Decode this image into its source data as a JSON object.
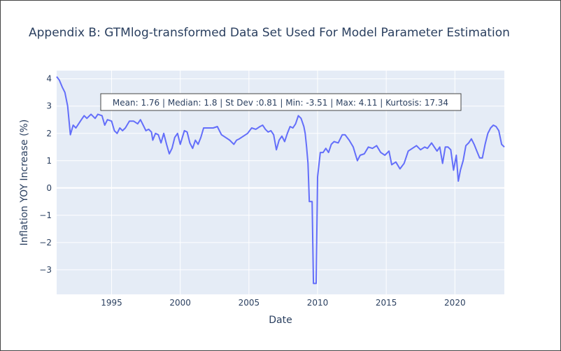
{
  "chart_data": {
    "type": "line",
    "title": "Appendix B: GTMlog-transformed Data Set Used For Model Parameter Estimation",
    "xlabel": "Date",
    "ylabel": "Inflation YOY Increase (%)",
    "annotation": "Mean: 1.76 | Median: 1.8 | St Dev :0.81 | Min: -3.51 | Max: 4.11 | Kurtosis: 17.34",
    "xlim": [
      1991.0,
      2023.6
    ],
    "ylim": [
      -3.9,
      4.3
    ],
    "x_ticks": [
      1995,
      2000,
      2005,
      2010,
      2015,
      2020
    ],
    "x_tick_labels": [
      "1995",
      "2000",
      "2005",
      "2010",
      "2015",
      "2020"
    ],
    "y_ticks": [
      -3,
      -2,
      -1,
      0,
      1,
      2,
      3,
      4
    ],
    "y_tick_labels": [
      "−3",
      "−2",
      "−1",
      "0",
      "1",
      "2",
      "3",
      "4"
    ],
    "grid": true,
    "colors": {
      "line": "#636efa",
      "plot_bg": "#e5ecf6",
      "grid": "#ffffff",
      "text": "#2a3f5f"
    },
    "series": [
      {
        "values": [
          [
            1991.0,
            4.08
          ],
          [
            1991.2,
            3.95
          ],
          [
            1991.4,
            3.7
          ],
          [
            1991.6,
            3.5
          ],
          [
            1991.8,
            3.0
          ],
          [
            1992.0,
            1.95
          ],
          [
            1992.2,
            2.3
          ],
          [
            1992.4,
            2.2
          ],
          [
            1992.6,
            2.35
          ],
          [
            1992.8,
            2.5
          ],
          [
            1993.0,
            2.65
          ],
          [
            1993.2,
            2.55
          ],
          [
            1993.5,
            2.7
          ],
          [
            1993.8,
            2.55
          ],
          [
            1994.0,
            2.7
          ],
          [
            1994.3,
            2.65
          ],
          [
            1994.5,
            2.3
          ],
          [
            1994.7,
            2.5
          ],
          [
            1995.0,
            2.45
          ],
          [
            1995.2,
            2.1
          ],
          [
            1995.4,
            2.0
          ],
          [
            1995.6,
            2.2
          ],
          [
            1995.8,
            2.1
          ],
          [
            1996.0,
            2.2
          ],
          [
            1996.3,
            2.45
          ],
          [
            1996.6,
            2.45
          ],
          [
            1996.9,
            2.35
          ],
          [
            1997.1,
            2.5
          ],
          [
            1997.3,
            2.3
          ],
          [
            1997.5,
            2.1
          ],
          [
            1997.7,
            2.15
          ],
          [
            1997.9,
            2.05
          ],
          [
            1998.0,
            1.75
          ],
          [
            1998.2,
            2.0
          ],
          [
            1998.4,
            1.95
          ],
          [
            1998.6,
            1.65
          ],
          [
            1998.8,
            2.0
          ],
          [
            1999.0,
            1.6
          ],
          [
            1999.2,
            1.25
          ],
          [
            1999.4,
            1.45
          ],
          [
            1999.6,
            1.85
          ],
          [
            1999.8,
            2.0
          ],
          [
            2000.0,
            1.6
          ],
          [
            2000.3,
            2.1
          ],
          [
            2000.5,
            2.05
          ],
          [
            2000.7,
            1.65
          ],
          [
            2000.9,
            1.45
          ],
          [
            2001.1,
            1.75
          ],
          [
            2001.3,
            1.6
          ],
          [
            2001.5,
            1.85
          ],
          [
            2001.7,
            2.2
          ],
          [
            2002.0,
            2.2
          ],
          [
            2002.4,
            2.2
          ],
          [
            2002.7,
            2.25
          ],
          [
            2003.0,
            1.95
          ],
          [
            2003.3,
            1.85
          ],
          [
            2003.6,
            1.75
          ],
          [
            2003.9,
            1.6
          ],
          [
            2004.1,
            1.75
          ],
          [
            2004.3,
            1.8
          ],
          [
            2004.6,
            1.9
          ],
          [
            2004.9,
            2.0
          ],
          [
            2005.2,
            2.2
          ],
          [
            2005.5,
            2.15
          ],
          [
            2005.8,
            2.25
          ],
          [
            2006.0,
            2.3
          ],
          [
            2006.2,
            2.15
          ],
          [
            2006.4,
            2.05
          ],
          [
            2006.6,
            2.1
          ],
          [
            2006.8,
            1.95
          ],
          [
            2007.0,
            1.4
          ],
          [
            2007.2,
            1.75
          ],
          [
            2007.4,
            1.9
          ],
          [
            2007.6,
            1.7
          ],
          [
            2007.8,
            2.0
          ],
          [
            2008.0,
            2.25
          ],
          [
            2008.2,
            2.2
          ],
          [
            2008.4,
            2.35
          ],
          [
            2008.6,
            2.65
          ],
          [
            2008.8,
            2.55
          ],
          [
            2009.0,
            2.25
          ],
          [
            2009.1,
            2.0
          ],
          [
            2009.2,
            1.5
          ],
          [
            2009.3,
            0.9
          ],
          [
            2009.4,
            -0.5
          ],
          [
            2009.6,
            -0.5
          ],
          [
            2009.7,
            -3.5
          ],
          [
            2009.9,
            -3.5
          ],
          [
            2010.0,
            0.4
          ],
          [
            2010.2,
            1.3
          ],
          [
            2010.4,
            1.3
          ],
          [
            2010.6,
            1.45
          ],
          [
            2010.8,
            1.3
          ],
          [
            2011.0,
            1.6
          ],
          [
            2011.2,
            1.7
          ],
          [
            2011.5,
            1.65
          ],
          [
            2011.8,
            1.95
          ],
          [
            2012.0,
            1.95
          ],
          [
            2012.3,
            1.75
          ],
          [
            2012.6,
            1.5
          ],
          [
            2012.9,
            1.0
          ],
          [
            2013.1,
            1.2
          ],
          [
            2013.4,
            1.25
          ],
          [
            2013.7,
            1.5
          ],
          [
            2014.0,
            1.45
          ],
          [
            2014.3,
            1.55
          ],
          [
            2014.6,
            1.3
          ],
          [
            2014.9,
            1.2
          ],
          [
            2015.2,
            1.35
          ],
          [
            2015.4,
            0.85
          ],
          [
            2015.7,
            0.95
          ],
          [
            2016.0,
            0.7
          ],
          [
            2016.3,
            0.9
          ],
          [
            2016.6,
            1.35
          ],
          [
            2016.9,
            1.45
          ],
          [
            2017.2,
            1.55
          ],
          [
            2017.5,
            1.4
          ],
          [
            2017.8,
            1.5
          ],
          [
            2018.0,
            1.45
          ],
          [
            2018.3,
            1.65
          ],
          [
            2018.5,
            1.5
          ],
          [
            2018.7,
            1.35
          ],
          [
            2018.9,
            1.5
          ],
          [
            2019.1,
            0.9
          ],
          [
            2019.3,
            1.5
          ],
          [
            2019.5,
            1.5
          ],
          [
            2019.7,
            1.4
          ],
          [
            2019.9,
            0.65
          ],
          [
            2020.1,
            1.2
          ],
          [
            2020.25,
            0.25
          ],
          [
            2020.4,
            0.65
          ],
          [
            2020.6,
            1.0
          ],
          [
            2020.8,
            1.55
          ],
          [
            2021.0,
            1.65
          ],
          [
            2021.2,
            1.8
          ],
          [
            2021.4,
            1.6
          ],
          [
            2021.6,
            1.35
          ],
          [
            2021.8,
            1.1
          ],
          [
            2022.0,
            1.1
          ],
          [
            2022.2,
            1.6
          ],
          [
            2022.4,
            2.0
          ],
          [
            2022.6,
            2.2
          ],
          [
            2022.8,
            2.3
          ],
          [
            2023.0,
            2.25
          ],
          [
            2023.2,
            2.1
          ],
          [
            2023.4,
            1.6
          ],
          [
            2023.6,
            1.5
          ]
        ]
      }
    ]
  }
}
